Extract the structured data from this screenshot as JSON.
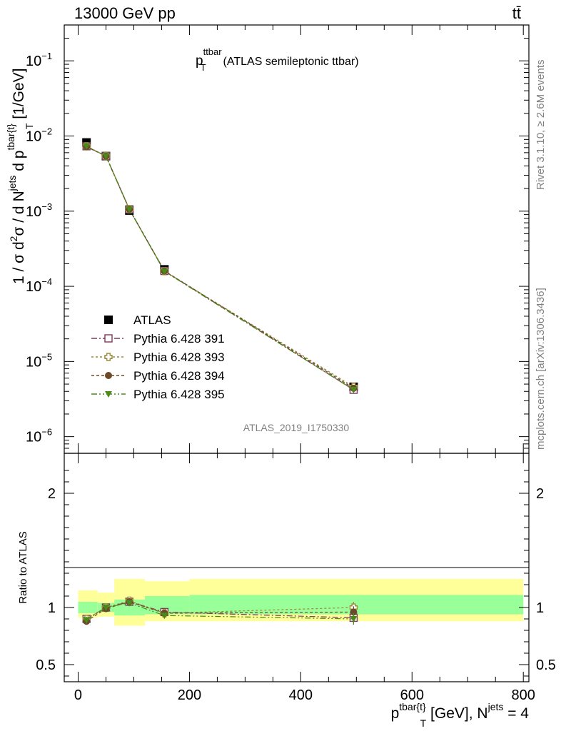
{
  "header": {
    "left": "13000 GeV pp",
    "right": "tt̄"
  },
  "side_labels": {
    "rivet": "Rivet 3.1.10, ≥ 2.6M events",
    "mcplots": "mcplots.cern.ch [arXiv:1306.3436]"
  },
  "chart_data": [
    {
      "type": "scatter",
      "title": "p",
      "title_sup": "ttbar",
      "title_sub": "T",
      "title_rest": "(ATLAS semileptonic ttbar)",
      "watermark": "ATLAS_2019_I1750330",
      "yscale": "log",
      "ylabel": "1 / σ d²σ / d N^jets d p^tbar{t}_T [1/GeV]",
      "ylabel_parts": {
        "a": "1 / σ d",
        "a_sup": "2",
        "b": "σ / d N",
        "b_sup": "jets",
        "c": " d p",
        "c_sup": "tbar{t}",
        "c_sub": "T",
        "d": " [1/GeV]"
      },
      "xlim": [
        -25,
        810
      ],
      "ylim": [
        6e-07,
        0.3
      ],
      "yticks": [
        {
          "value": 1e-06,
          "base": "10",
          "exp": "−6"
        },
        {
          "value": 1e-05,
          "base": "10",
          "exp": "−5"
        },
        {
          "value": 0.0001,
          "base": "10",
          "exp": "−4"
        },
        {
          "value": 0.001,
          "base": "10",
          "exp": "−3"
        },
        {
          "value": 0.01,
          "base": "10",
          "exp": "−2"
        },
        {
          "value": 0.1,
          "base": "10",
          "exp": "−1"
        }
      ],
      "legend_position": "middle-left",
      "series": [
        {
          "name": "ATLAS",
          "marker": "square-filled",
          "color": "#000000",
          "x": [
            15,
            50,
            92,
            155,
            495
          ],
          "y": [
            0.0082,
            0.0054,
            0.00102,
            0.000168,
            4.6e-06
          ]
        },
        {
          "name": "Pythia 6.428 391",
          "marker": "square-open",
          "color": "#7a3a5a",
          "dash": "8,3,2,3",
          "x": [
            15,
            50,
            92,
            155,
            495
          ],
          "y": [
            0.0073,
            0.0054,
            0.00106,
            0.00016,
            4.2e-06
          ]
        },
        {
          "name": "Pythia 6.428 393",
          "marker": "cross-open",
          "color": "#9a8a3a",
          "dash": "3,3",
          "x": [
            15,
            50,
            92,
            155,
            495
          ],
          "y": [
            0.0073,
            0.0054,
            0.00106,
            0.000159,
            4.6e-06
          ]
        },
        {
          "name": "Pythia 6.428 394",
          "marker": "circle-filled",
          "color": "#6b4a2a",
          "dash": "4,3",
          "x": [
            15,
            50,
            92,
            155,
            495
          ],
          "y": [
            0.0072,
            0.0054,
            0.00106,
            0.00016,
            4.4e-06
          ]
        },
        {
          "name": "Pythia 6.428 395",
          "marker": "triangle-down-filled",
          "color": "#4a8a1a",
          "dash": "8,3,2,3,2,3",
          "x": [
            15,
            50,
            92,
            155,
            495
          ],
          "y": [
            0.0073,
            0.0054,
            0.00106,
            0.000158,
            4.2e-06
          ]
        }
      ]
    },
    {
      "type": "scatter",
      "ylabel": "Ratio to ATLAS",
      "xlabel": "p^tbar{t}_T [GeV], N^jets = 4",
      "xlabel_parts": {
        "a": "p",
        "a_sup": "tbar{t}",
        "a_sub": "T",
        "b": " [GeV], N",
        "b_sup": "jets",
        "c": " = 4"
      },
      "xlim": [
        -25,
        810
      ],
      "ylim": [
        0.35,
        2.35
      ],
      "yticks": [
        {
          "value": 0.5,
          "label": "0.5"
        },
        {
          "value": 1,
          "label": "1"
        },
        {
          "value": 2,
          "label": "2"
        }
      ],
      "xticks": [
        {
          "value": 0,
          "label": "0"
        },
        {
          "value": 200,
          "label": "200"
        },
        {
          "value": 400,
          "label": "400"
        },
        {
          "value": 600,
          "label": "600"
        },
        {
          "value": 800,
          "label": "800"
        }
      ],
      "bands": {
        "stat_color": "#99ff99",
        "total_color": "#ffff99",
        "bins": [
          {
            "x0": 0,
            "x1": 35,
            "stat": [
              0.95,
              1.05
            ],
            "total": [
              0.91,
              1.15
            ]
          },
          {
            "x0": 35,
            "x1": 65,
            "stat": [
              0.96,
              1.04
            ],
            "total": [
              0.92,
              1.13
            ]
          },
          {
            "x0": 65,
            "x1": 120,
            "stat": [
              0.93,
              1.07
            ],
            "total": [
              0.84,
              1.25
            ]
          },
          {
            "x0": 120,
            "x1": 200,
            "stat": [
              0.94,
              1.1
            ],
            "total": [
              0.88,
              1.23
            ]
          },
          {
            "x0": 200,
            "x1": 800,
            "stat": [
              0.94,
              1.11
            ],
            "total": [
              0.88,
              1.25
            ]
          }
        ]
      },
      "series": [
        {
          "name": "Pythia 6.428 391",
          "x": [
            15,
            50,
            92,
            155,
            495
          ],
          "y": [
            0.9,
            1.0,
            1.05,
            0.96,
            0.91
          ],
          "yerr": [
            0.03,
            0.02,
            0.03,
            0.02,
            0.05
          ]
        },
        {
          "name": "Pythia 6.428 393",
          "x": [
            15,
            50,
            92,
            155,
            495
          ],
          "y": [
            0.9,
            1.0,
            1.06,
            0.95,
            1.0
          ],
          "yerr": [
            0.03,
            0.02,
            0.03,
            0.02,
            0.05
          ]
        },
        {
          "name": "Pythia 6.428 394",
          "x": [
            15,
            50,
            92,
            155,
            495
          ],
          "y": [
            0.88,
            0.99,
            1.05,
            0.95,
            0.96
          ],
          "yerr": [
            0.03,
            0.02,
            0.03,
            0.02,
            0.05
          ]
        },
        {
          "name": "Pythia 6.428 395",
          "x": [
            15,
            50,
            92,
            155,
            495
          ],
          "y": [
            0.89,
            1.0,
            1.04,
            0.93,
            0.9
          ],
          "yerr": [
            0.03,
            0.02,
            0.03,
            0.02,
            0.05
          ]
        }
      ]
    }
  ]
}
